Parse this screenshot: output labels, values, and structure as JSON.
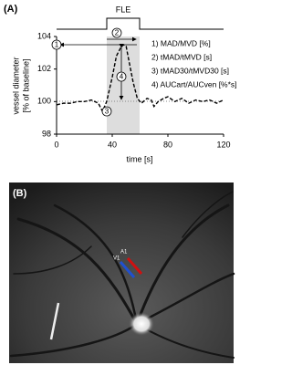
{
  "chart_data": {
    "type": "line",
    "panel_label": "(A)",
    "stimulus_label": "FLE",
    "xlabel": "time [s]",
    "ylabel": [
      "vessel diameter",
      "[% of baseline]"
    ],
    "x": [
      0,
      5,
      10,
      15,
      20,
      25,
      30,
      33,
      36,
      40,
      43,
      46,
      48,
      50,
      52,
      55,
      58,
      61,
      65,
      68,
      70,
      73,
      77,
      80,
      85,
      90,
      95,
      100,
      105,
      110,
      115,
      120
    ],
    "series": [
      {
        "color": "#000000",
        "values": [
          99.8,
          99.9,
          99.9,
          100.0,
          100.0,
          100.1,
          99.9,
          99.4,
          100.0,
          101.5,
          102.8,
          103.3,
          103.5,
          103.4,
          102.5,
          101.2,
          100.2,
          99.9,
          100.2,
          100.1,
          99.7,
          100.0,
          100.2,
          100.3,
          100.0,
          100.2,
          99.9,
          100.1,
          100.0,
          100.1,
          99.9,
          100.1
        ]
      }
    ],
    "xlim": [
      0,
      120
    ],
    "xticks": [
      0,
      40,
      80,
      120
    ],
    "ylim": [
      98,
      104
    ],
    "yticks": [
      98,
      100,
      102,
      104
    ],
    "markers": [
      "1",
      "2",
      "3",
      "4"
    ],
    "legend_items": [
      "1) MAD/MVD [%]",
      "2) tMAD/tMVD [s]",
      "3) tMAD30/tMVD30 [s]",
      "4) AUCart/AUCven [%*s]"
    ]
  },
  "panel_b": {
    "panel_label": "(B)",
    "artery_label": "A1",
    "vein_label": "V1"
  }
}
